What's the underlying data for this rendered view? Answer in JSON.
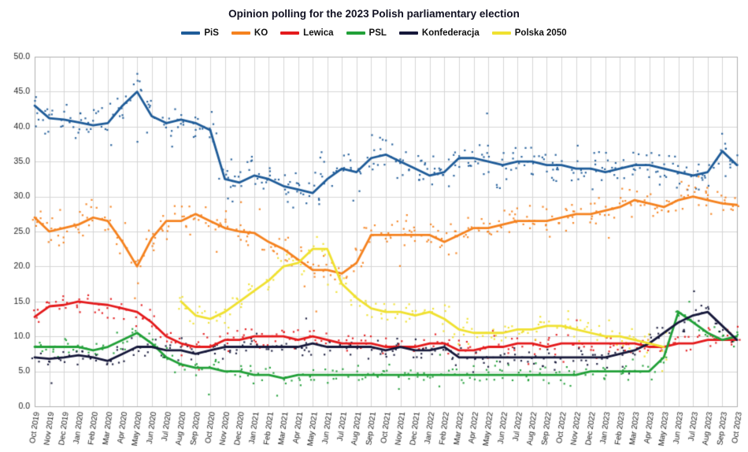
{
  "chart_data": {
    "type": "scatter",
    "title": "Opinion polling for the 2023 Polish parliamentary election",
    "xlabel": "",
    "ylabel": "",
    "ylim": [
      0,
      50
    ],
    "ytick_step": 5,
    "grid": true,
    "legend_position": "top",
    "categories": [
      "Oct 2019",
      "Nov 2019",
      "Dec 2019",
      "Jan 2020",
      "Feb 2020",
      "Mar 2020",
      "Apr 2020",
      "May 2020",
      "Jun 2020",
      "Jul 2020",
      "Aug 2020",
      "Sep 2020",
      "Oct 2020",
      "Nov 2020",
      "Dec 2020",
      "Jan 2021",
      "Feb 2021",
      "Mar 2021",
      "Apr 2021",
      "May 2021",
      "Jun 2021",
      "Jul 2021",
      "Aug 2021",
      "Sep 2021",
      "Oct 2021",
      "Nov 2021",
      "Dec 2021",
      "Jan 2022",
      "Feb 2022",
      "Mar 2022",
      "Apr 2022",
      "May 2022",
      "Jun 2022",
      "Jul 2022",
      "Aug 2022",
      "Sep 2022",
      "Oct 2022",
      "Nov 2022",
      "Dec 2022",
      "Jan 2023",
      "Feb 2023",
      "Mar 2023",
      "Apr 2023",
      "May 2023",
      "Jun 2023",
      "Jul 2023",
      "Aug 2023",
      "Sep 2023",
      "Oct 2023"
    ],
    "series": [
      {
        "name": "PiS",
        "color": "#1f5c99",
        "jitter": 2.6,
        "points_per_month": 8,
        "values": [
          43,
          41.2,
          41,
          40.6,
          40.2,
          40.5,
          43,
          45,
          41.5,
          40.5,
          41,
          40.5,
          39.5,
          32.5,
          32,
          33,
          32.5,
          31.5,
          31,
          30.5,
          32.5,
          34,
          33.5,
          35.5,
          36,
          35,
          34,
          33,
          33.5,
          35.5,
          35.5,
          35,
          34.5,
          35,
          35,
          34.5,
          34.5,
          34,
          34,
          33.5,
          34,
          34.5,
          34.5,
          34,
          33.5,
          33,
          33.5,
          36.5,
          34.5
        ]
      },
      {
        "name": "KO",
        "color": "#f5821f",
        "jitter": 2.2,
        "points_per_month": 7,
        "values": [
          27,
          25,
          25.5,
          26,
          27,
          26.5,
          23.5,
          20,
          24,
          26.5,
          26.5,
          27.5,
          26.5,
          25.5,
          25,
          24.8,
          23.5,
          22.5,
          21,
          19.5,
          19.5,
          19,
          20.5,
          24.5,
          24.5,
          24.5,
          24.5,
          24.5,
          23.5,
          24.5,
          25.5,
          25.5,
          26,
          26.5,
          26.5,
          26.5,
          27,
          27.5,
          27.5,
          28,
          28.5,
          29.5,
          29,
          28.5,
          29.5,
          30,
          29.5,
          29,
          28.8
        ]
      },
      {
        "name": "Lewica",
        "color": "#e41a1c",
        "jitter": 1.7,
        "points_per_month": 5,
        "values": [
          12.8,
          14.3,
          14.5,
          15,
          14.7,
          14.5,
          14,
          13.5,
          12,
          10,
          9,
          8.5,
          8.5,
          9.5,
          9.5,
          10,
          10,
          10,
          9.5,
          10,
          9.5,
          9,
          9,
          9,
          8.5,
          8.5,
          8.5,
          9,
          9,
          8,
          8,
          8.5,
          8.5,
          9,
          9,
          8.5,
          9,
          9,
          9,
          9,
          9,
          9,
          8.5,
          8.5,
          9,
          9,
          9.5,
          9.5,
          9.5
        ]
      },
      {
        "name": "PSL",
        "color": "#21a038",
        "jitter": 1.4,
        "points_per_month": 5,
        "values": [
          8.5,
          8.5,
          8.5,
          8.5,
          8,
          8.5,
          9.5,
          10.5,
          9,
          7,
          6,
          5.5,
          5.5,
          5,
          5,
          4.5,
          4.5,
          4,
          4.5,
          4.5,
          4.5,
          4.5,
          4.5,
          4.5,
          4.5,
          4.5,
          4.5,
          4.5,
          4.5,
          4.5,
          4.5,
          4.5,
          4.5,
          4.5,
          4.5,
          4.5,
          4.5,
          4.5,
          5,
          5,
          5,
          5,
          5,
          7,
          13.5,
          12,
          10.5,
          9.5,
          10
        ]
      },
      {
        "name": "Konfederacja",
        "color": "#16183a",
        "jitter": 1.4,
        "points_per_month": 5,
        "values": [
          7,
          6.8,
          7,
          7.3,
          7,
          6.5,
          7.5,
          8.5,
          8.5,
          8,
          8,
          7.5,
          8,
          8.5,
          8.5,
          8.5,
          8.5,
          8.5,
          8.5,
          9,
          8.5,
          8.5,
          8.5,
          8.5,
          8,
          8.5,
          8,
          8,
          8.5,
          7,
          7,
          7,
          7,
          7,
          7,
          7,
          7,
          7,
          7,
          7,
          7.5,
          8,
          9,
          10.5,
          12,
          13,
          13.5,
          11.5,
          9.5
        ]
      },
      {
        "name": "Polska 2050",
        "color": "#f0e130",
        "jitter": 1.9,
        "points_per_month": 5,
        "values": [
          null,
          null,
          null,
          null,
          null,
          null,
          null,
          null,
          null,
          null,
          15,
          13,
          12.5,
          13.5,
          15,
          16.5,
          18,
          20,
          20.5,
          22.5,
          22.5,
          17.5,
          15.5,
          14,
          13.5,
          13.5,
          13,
          13.5,
          12.5,
          11,
          10.5,
          10.5,
          10.5,
          11,
          11,
          11.5,
          11.5,
          11,
          10.5,
          10,
          10,
          9.5,
          9,
          8.5,
          null,
          null,
          null,
          null,
          null
        ]
      }
    ]
  }
}
